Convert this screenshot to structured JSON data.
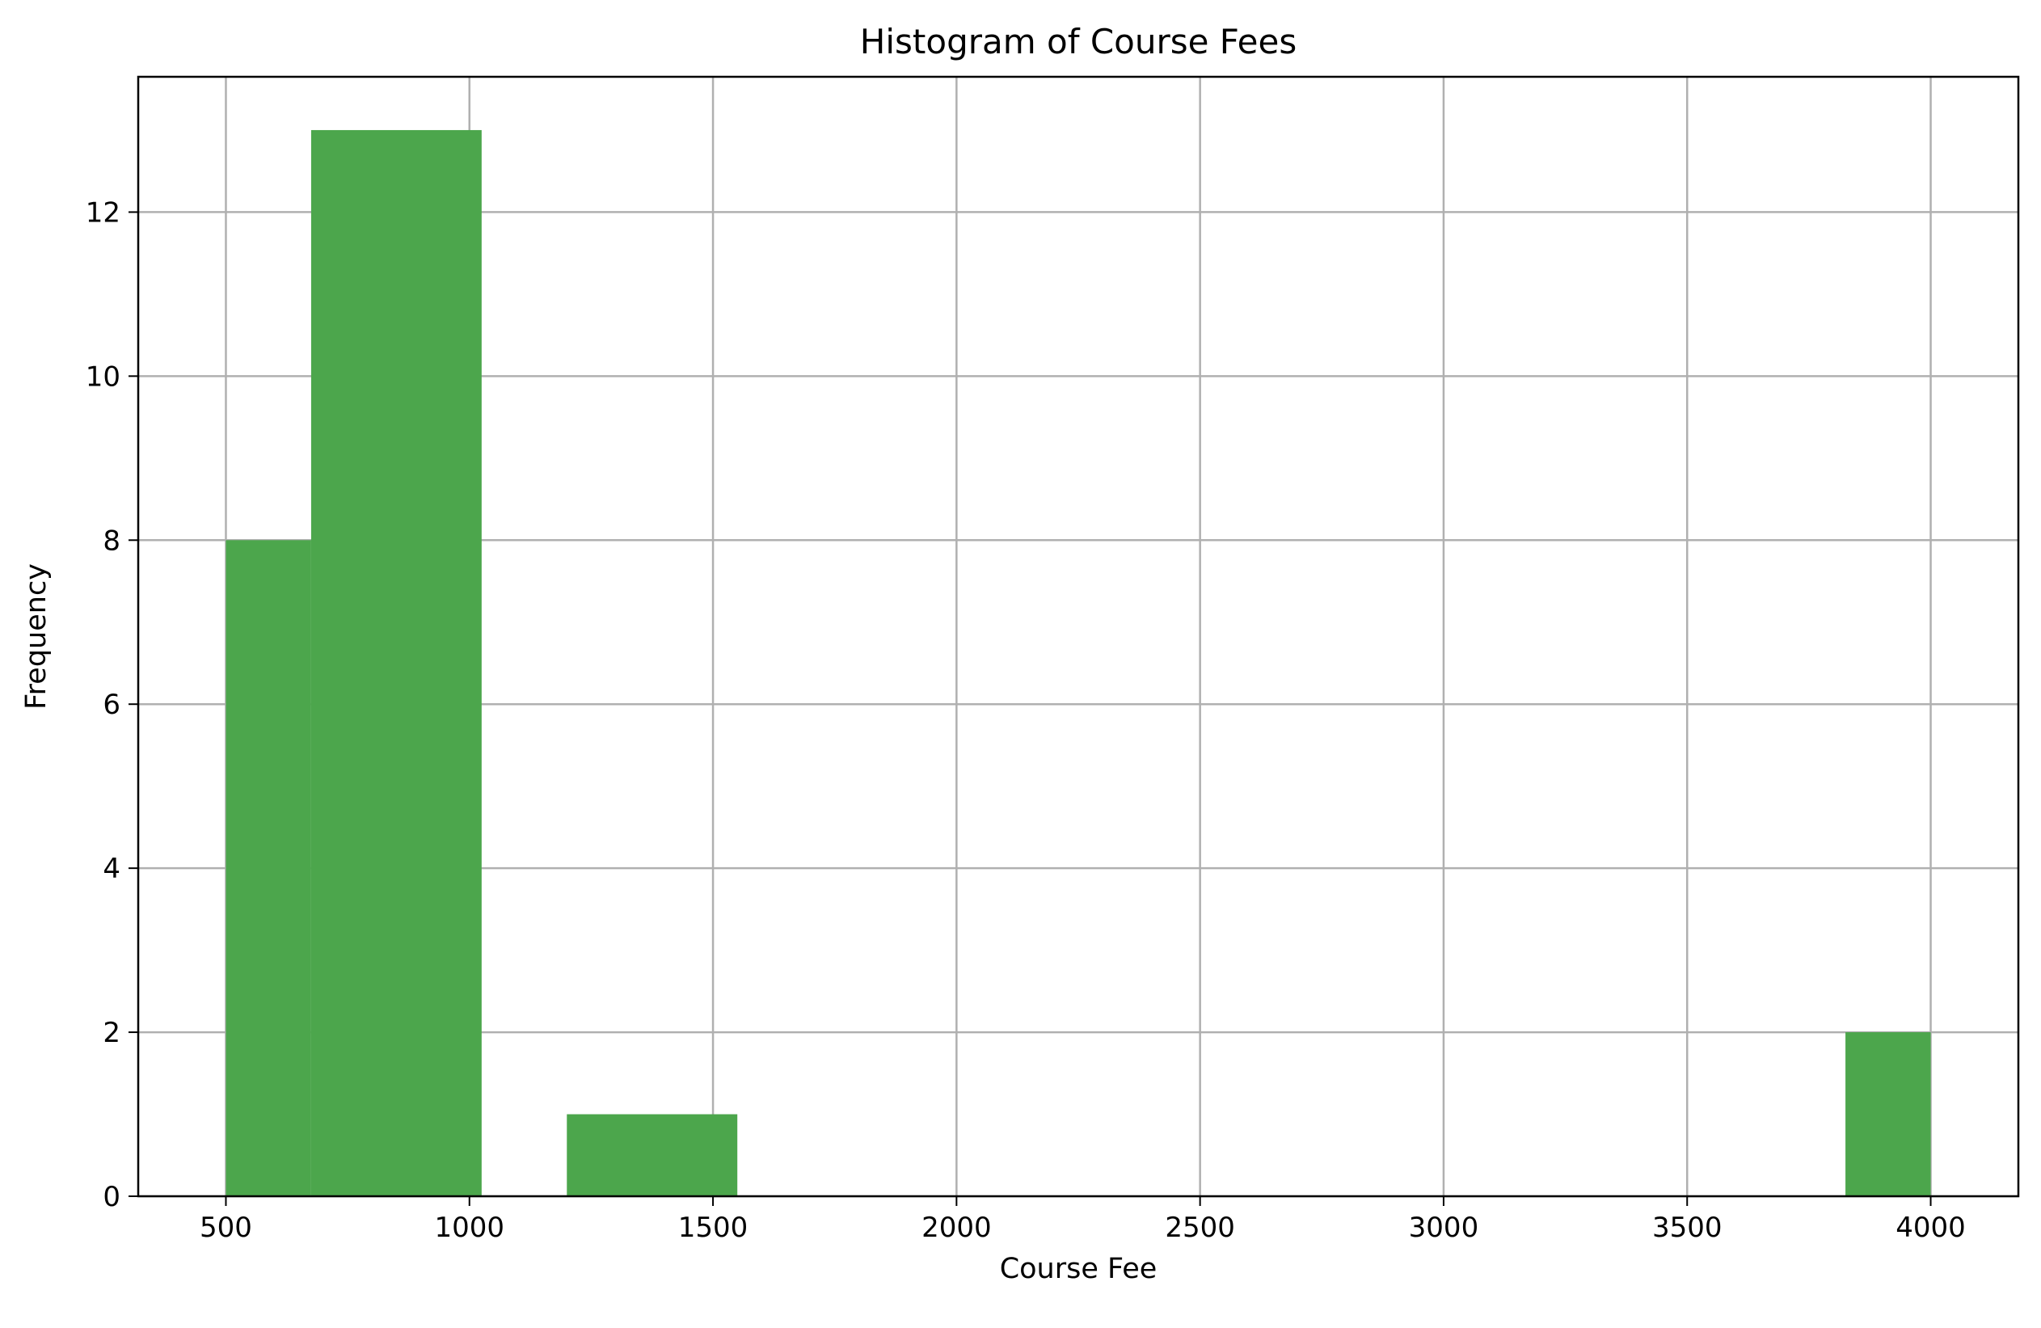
{
  "chart_data": {
    "type": "bar",
    "title": "Histogram of Course Fees",
    "xlabel": "Course Fee",
    "ylabel": "Frequency",
    "xlim": [
      320,
      4180
    ],
    "ylim": [
      0,
      13.65
    ],
    "x_ticks": [
      500,
      1000,
      1500,
      2000,
      2500,
      3000,
      3500,
      4000
    ],
    "y_ticks": [
      0,
      2,
      4,
      6,
      8,
      10,
      12
    ],
    "grid": true,
    "bar_color": "#4ca64c",
    "bins": [
      {
        "start": 500,
        "end": 675,
        "count": 8
      },
      {
        "start": 675,
        "end": 1025,
        "count": 13
      },
      {
        "start": 1200,
        "end": 1550,
        "count": 1
      },
      {
        "start": 3825,
        "end": 4000,
        "count": 2
      }
    ]
  }
}
